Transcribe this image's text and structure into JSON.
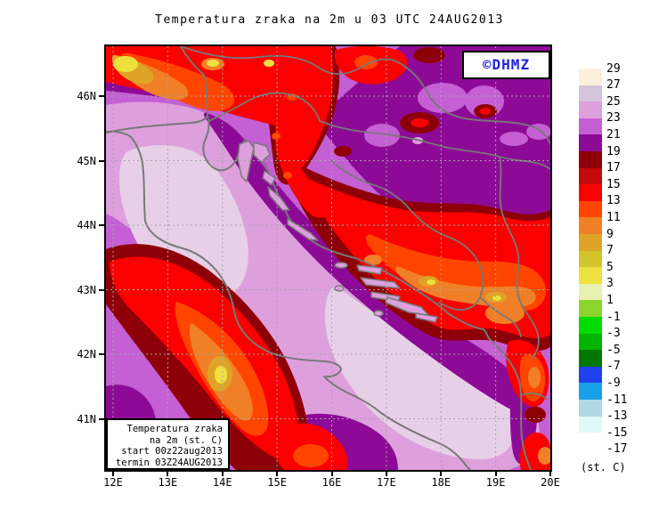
{
  "title": "Temperatura zraka na 2m u 03 UTC 24AUG2013",
  "watermark": {
    "label": "©DHMZ",
    "color": "#2323dd"
  },
  "info_box": {
    "lines": [
      "Temperatura zraka",
      "na 2m (st. C)",
      "start 00z22aug2013",
      "termin 03Z24AUG2013"
    ]
  },
  "axes": {
    "lat_labels": [
      "46N",
      "45N",
      "44N",
      "43N",
      "42N",
      "41N"
    ],
    "lon_labels": [
      "12E",
      "13E",
      "14E",
      "15E",
      "16E",
      "17E",
      "18E",
      "19E",
      "20E"
    ]
  },
  "colorbar": {
    "unit_label": "(st. C)",
    "tick_labels": [
      "29",
      "27",
      "25",
      "23",
      "21",
      "19",
      "17",
      "15",
      "13",
      "11",
      "9",
      "7",
      "5",
      "3",
      "1",
      "-1",
      "-3",
      "-5",
      "-7",
      "-9",
      "-11",
      "-13",
      "-15",
      "-17"
    ],
    "swatch_colors": [
      "#fcf0dc",
      "#d4c5dd",
      "#dda0dd",
      "#c45fd4",
      "#8d0a97",
      "#8e0008",
      "#c40a0a",
      "#fa0000",
      "#ff4500",
      "#f08028",
      "#dda427",
      "#d4c42c",
      "#eee13f",
      "#e8f0b4",
      "#8cd42c",
      "#00dc00",
      "#00b400",
      "#007800",
      "#2040f0",
      "#18a0e8",
      "#b0d8e4",
      "#e0f8f8",
      "#ffffff"
    ]
  },
  "chart_data": {
    "type": "heatmap",
    "title": "Temperatura zraka na 2m u 03 UTC 24AUG2013",
    "unit": "st. C",
    "lon_ticks": [
      "12E",
      "13E",
      "14E",
      "15E",
      "16E",
      "17E",
      "18E",
      "19E",
      "20E"
    ],
    "lat_ticks": [
      "46N",
      "45N",
      "44N",
      "43N",
      "42N",
      "41N"
    ],
    "temperature_scale_boundaries": [
      29,
      27,
      25,
      23,
      21,
      19,
      17,
      15,
      13,
      11,
      9,
      7,
      5,
      3,
      1,
      -1,
      -3,
      -5,
      -7,
      -9,
      -11,
      -13,
      -15,
      -17
    ],
    "scale_colors": [
      "#fcf0dc",
      "#d4c5dd",
      "#dda0dd",
      "#c45fd4",
      "#8d0a97",
      "#8e0008",
      "#c40a0a",
      "#fa0000",
      "#ff4500",
      "#f08028",
      "#dda427",
      "#d4c42c",
      "#eee13f",
      "#e8f0b4",
      "#8cd42c",
      "#00dc00",
      "#00b400",
      "#007800",
      "#2040f0",
      "#18a0e8",
      "#b0d8e4",
      "#e0f8f8",
      "#ffffff"
    ],
    "model_run": "start 00z22aug2013",
    "valid_time": "termin 03Z24AUG2013",
    "legend_position": "right"
  }
}
